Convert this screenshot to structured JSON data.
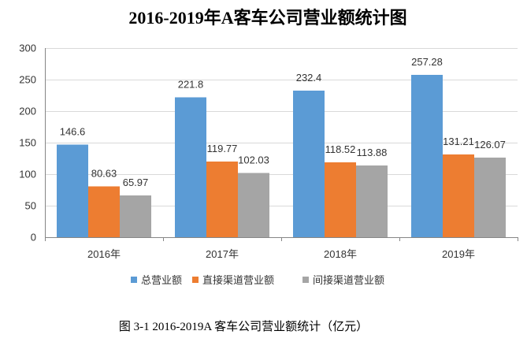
{
  "chart_data": {
    "type": "bar",
    "title": "2016-2019年A客车公司营业额统计图",
    "categories": [
      "2016年",
      "2017年",
      "2018年",
      "2019年"
    ],
    "series": [
      {
        "name": "总营业额",
        "color": "#5B9BD5",
        "values": [
          146.6,
          221.8,
          232.4,
          257.28
        ]
      },
      {
        "name": "直接渠道营业额",
        "color": "#ED7D31",
        "values": [
          80.63,
          119.77,
          118.52,
          131.21
        ]
      },
      {
        "name": "间接渠道营业额",
        "color": "#A5A5A5",
        "values": [
          65.97,
          102.03,
          113.88,
          126.07
        ]
      }
    ],
    "ylim": [
      0,
      300
    ],
    "yticks": [
      0,
      50,
      100,
      150,
      200,
      250,
      300
    ],
    "grid": true,
    "legend": "bottom"
  },
  "caption": "图 3-1 2016-2019A 客车公司营业额统计（亿元）"
}
